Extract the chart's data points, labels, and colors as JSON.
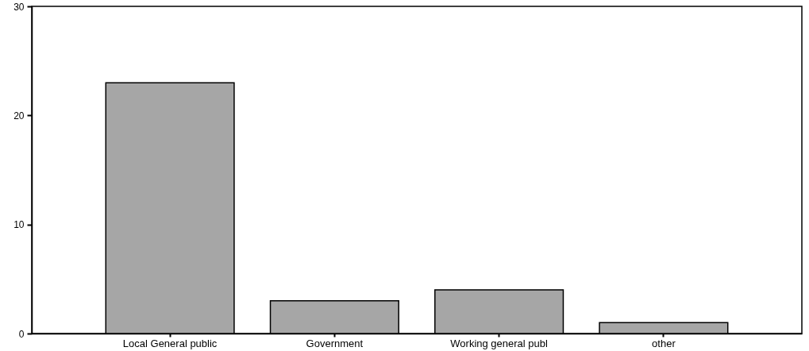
{
  "chart_data": {
    "type": "bar",
    "categories": [
      "Local General public",
      "Government",
      "Working general publ",
      "other"
    ],
    "values": [
      23,
      3,
      4,
      1
    ],
    "color": "#a6a6a6",
    "ylim": [
      0,
      30
    ],
    "yticks": [
      0,
      10,
      20,
      30
    ],
    "grid": false
  }
}
